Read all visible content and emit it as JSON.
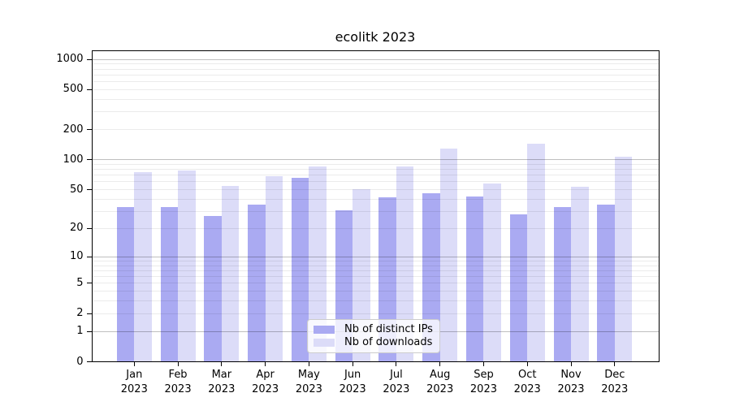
{
  "chart_data": {
    "type": "bar",
    "title": "ecolitk 2023",
    "categories": [
      "Jan",
      "Feb",
      "Mar",
      "Apr",
      "May",
      "Jun",
      "Jul",
      "Aug",
      "Sep",
      "Oct",
      "Nov",
      "Dec"
    ],
    "year_label": "2023",
    "series": [
      {
        "name": "Nb of distinct IPs",
        "color": "#aaaaf2",
        "values": [
          33,
          33,
          27,
          35,
          66,
          31,
          42,
          46,
          43,
          28,
          33,
          35
        ]
      },
      {
        "name": "Nb of downloads",
        "color": "#dcdcf8",
        "values": [
          75,
          78,
          55,
          68,
          86,
          51,
          85,
          129,
          58,
          145,
          54,
          107
        ]
      }
    ],
    "xlabel": "",
    "ylabel": "",
    "y_scale": "log1p",
    "ylim": [
      0,
      1240
    ],
    "y_ticks": [
      0,
      1,
      2,
      5,
      10,
      20,
      50,
      100,
      200,
      500,
      1000
    ],
    "grid_major": [
      1,
      10,
      100,
      1000
    ],
    "grid_minor": [
      2,
      3,
      4,
      5,
      6,
      7,
      8,
      9,
      20,
      30,
      40,
      50,
      60,
      70,
      80,
      90,
      200,
      300,
      400,
      500,
      600,
      700,
      800,
      900
    ],
    "grid": "on",
    "legend_position": "lower center"
  }
}
